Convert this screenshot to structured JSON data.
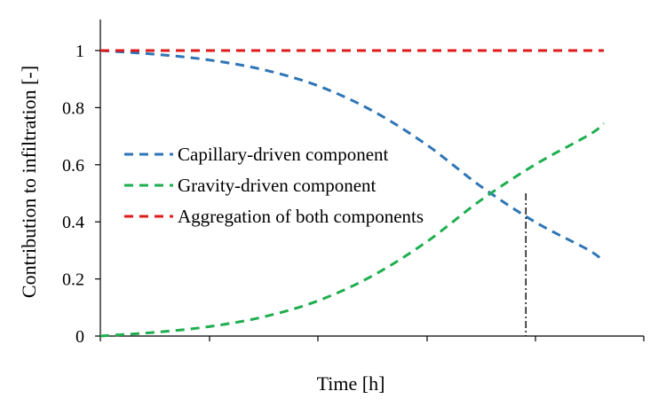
{
  "chart_data": {
    "type": "line",
    "title": "",
    "xlabel": "Time [h]",
    "ylabel": "Contribution to infiltration  [-]",
    "ylim": [
      0,
      1.1
    ],
    "xlim": [
      0,
      1
    ],
    "x_ticks_labeled": false,
    "yticks": [
      "0",
      "0.2",
      "0.4",
      "0.6",
      "0.8",
      "1"
    ],
    "grid": false,
    "legend_position": "center-left",
    "series": [
      {
        "name": "Capillary-driven component",
        "color": "#2E75B6",
        "dash": "dashed",
        "x": [
          0,
          0.1,
          0.2,
          0.3,
          0.4,
          0.5,
          0.6,
          0.7,
          0.8,
          0.9,
          0.927
        ],
        "y": [
          1.0,
          0.987,
          0.967,
          0.933,
          0.877,
          0.79,
          0.671,
          0.525,
          0.4,
          0.3,
          0.26
        ]
      },
      {
        "name": "Gravity-driven component",
        "color": "#1FAE4F",
        "dash": "dashed",
        "x": [
          0,
          0.1,
          0.2,
          0.3,
          0.4,
          0.5,
          0.6,
          0.7,
          0.8,
          0.9,
          0.927
        ],
        "y": [
          0,
          0.013,
          0.033,
          0.067,
          0.123,
          0.21,
          0.329,
          0.475,
          0.6,
          0.705,
          0.745
        ]
      },
      {
        "name": "Aggregation of both components",
        "color": "#E0191A",
        "dash": "dashed",
        "x": [
          0,
          0.927
        ],
        "y": [
          1.0,
          1.0
        ]
      }
    ],
    "annotations": [
      {
        "type": "vertical-dashdot-line",
        "x": 0.783,
        "y_from": 0,
        "y_to": 0.5,
        "color": "#000000"
      }
    ]
  }
}
